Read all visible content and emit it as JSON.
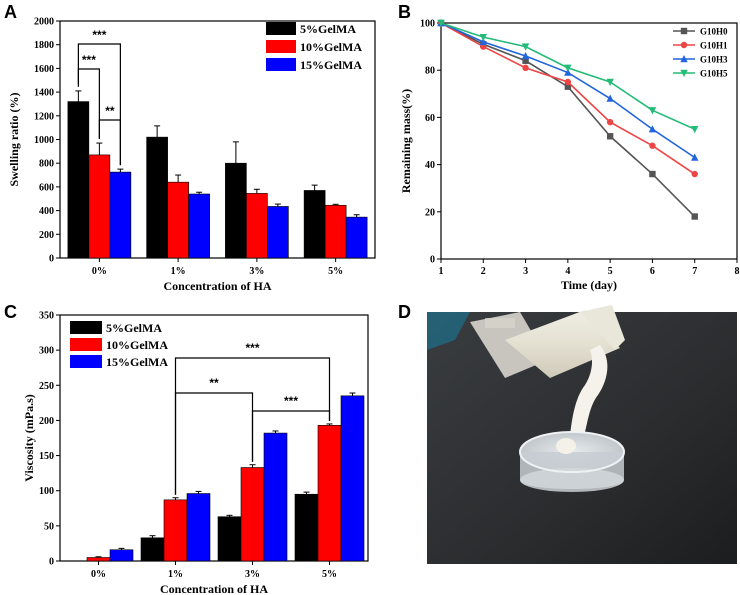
{
  "panels": {
    "A": "A",
    "B": "B",
    "C": "C",
    "D": "D"
  },
  "chart_data": [
    {
      "panel": "A",
      "type": "bar",
      "xlabel": "Concentration of HA",
      "ylabel": "Swelling ratio (%)",
      "ylim": [
        0,
        2000
      ],
      "yticks": [
        0,
        200,
        400,
        600,
        800,
        1000,
        1200,
        1400,
        1600,
        1800,
        2000
      ],
      "categories": [
        "0%",
        "1%",
        "3%",
        "5%"
      ],
      "series": [
        {
          "name": "5%GelMA",
          "color": "#000000",
          "values": [
            1320,
            1020,
            800,
            570
          ],
          "errors": [
            90,
            95,
            180,
            45
          ]
        },
        {
          "name": "10%GelMA",
          "color": "#ff0000",
          "values": [
            870,
            640,
            545,
            445
          ],
          "errors": [
            100,
            60,
            35,
            8
          ]
        },
        {
          "name": "15%GelMA",
          "color": "#0000ff",
          "values": [
            725,
            540,
            435,
            345
          ],
          "errors": [
            25,
            15,
            20,
            20
          ]
        }
      ],
      "annotations": [
        {
          "label": "***",
          "from": "5%GelMA",
          "to": "15%GelMA",
          "category": "0%"
        },
        {
          "label": "***",
          "from": "5%GelMA",
          "to": "10%GelMA",
          "category": "0%"
        },
        {
          "label": "**",
          "from": "10%GelMA",
          "to": "15%GelMA",
          "category": "0%"
        }
      ]
    },
    {
      "panel": "B",
      "type": "line",
      "xlabel": "Time (day)",
      "ylabel": "Remaining mass(%)",
      "xlim": [
        1,
        8
      ],
      "ylim": [
        0,
        100
      ],
      "xticks": [
        1,
        2,
        3,
        4,
        5,
        6,
        7,
        8
      ],
      "yticks": [
        0,
        20,
        40,
        60,
        80,
        100
      ],
      "series": [
        {
          "name": "G10H0",
          "color": "#555555",
          "marker": "square",
          "x": [
            1,
            2,
            3,
            4,
            5,
            6,
            7
          ],
          "y": [
            100,
            91,
            84,
            73,
            52,
            36,
            18
          ]
        },
        {
          "name": "G10H1",
          "color": "#ee4444",
          "marker": "circle",
          "x": [
            1,
            2,
            3,
            4,
            5,
            6,
            7
          ],
          "y": [
            100,
            90,
            81,
            75,
            58,
            48,
            36
          ]
        },
        {
          "name": "G10H3",
          "color": "#2266dd",
          "marker": "triangle-up",
          "x": [
            1,
            2,
            3,
            4,
            5,
            6,
            7
          ],
          "y": [
            100,
            92,
            86,
            79,
            68,
            55,
            43
          ]
        },
        {
          "name": "G10H5",
          "color": "#22bb77",
          "marker": "triangle-down",
          "x": [
            1,
            2,
            3,
            4,
            5,
            6,
            7
          ],
          "y": [
            100,
            94,
            90,
            81,
            75,
            63,
            55
          ]
        }
      ]
    },
    {
      "panel": "C",
      "type": "bar",
      "xlabel": "Concentration of HA",
      "ylabel": "Viscosity (mPa.s)",
      "ylim": [
        0,
        350
      ],
      "yticks": [
        0,
        50,
        100,
        150,
        200,
        250,
        300,
        350
      ],
      "categories": [
        "0%",
        "1%",
        "3%",
        "5%"
      ],
      "series": [
        {
          "name": "5%GelMA",
          "color": "#000000",
          "values": [
            0,
            33,
            63,
            95
          ],
          "errors": [
            0,
            3,
            2,
            3
          ]
        },
        {
          "name": "10%GelMA",
          "color": "#ff0000",
          "values": [
            5,
            87,
            133,
            193
          ],
          "errors": [
            1,
            3,
            4,
            2
          ]
        },
        {
          "name": "15%GelMA",
          "color": "#0000ff",
          "values": [
            16,
            96,
            182,
            235
          ],
          "errors": [
            2,
            3,
            3,
            4
          ]
        }
      ],
      "annotations": [
        {
          "label": "***",
          "from_category": "1%",
          "to_category": "5%",
          "series": "10%GelMA"
        },
        {
          "label": "**",
          "from_category": "1%",
          "to_category": "3%",
          "series": "10%GelMA"
        },
        {
          "label": "***",
          "from_category": "3%",
          "to_category": "5%",
          "series": "10%GelMA"
        }
      ]
    }
  ],
  "photo": {
    "panel": "D",
    "description_icon": "syringe-dish-photo"
  }
}
